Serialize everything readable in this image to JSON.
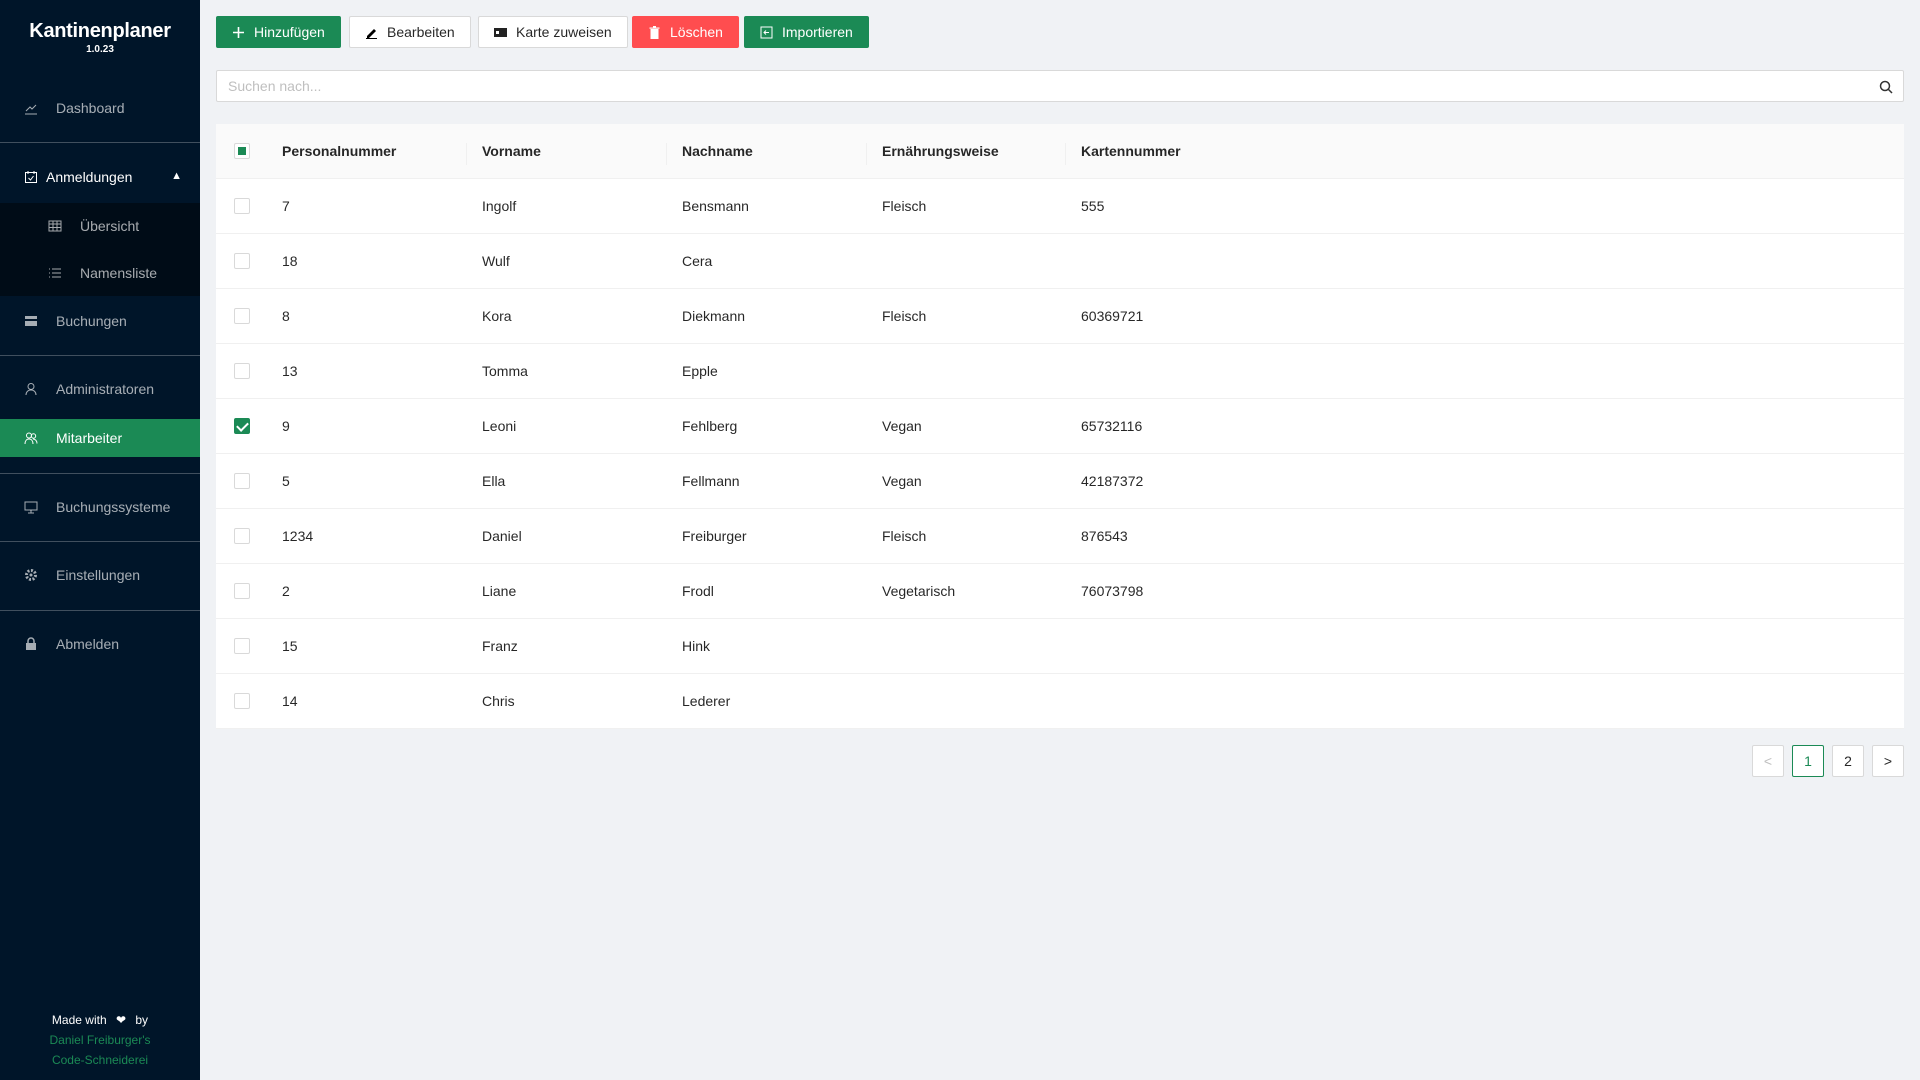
{
  "app": {
    "title": "Kantinenplaner",
    "version": "1.0.23"
  },
  "sidebar": {
    "dashboard": "Dashboard",
    "anmeldungen": "Anmeldungen",
    "uebersicht": "Übersicht",
    "namensliste": "Namensliste",
    "buchungen": "Buchungen",
    "administratoren": "Administratoren",
    "mitarbeiter": "Mitarbeiter",
    "buchungssysteme": "Buchungssysteme",
    "einstellungen": "Einstellungen",
    "abmelden": "Abmelden",
    "active": "Mitarbeiter"
  },
  "footer": {
    "made_with": "Made with",
    "by": "by",
    "credit_line1": "Daniel Freiburger's",
    "credit_line2": "Code-Schneiderei"
  },
  "toolbar": {
    "add": "Hinzufügen",
    "edit": "Bearbeiten",
    "assign_card": "Karte zuweisen",
    "delete": "Löschen",
    "import": "Importieren"
  },
  "search": {
    "placeholder": "Suchen nach...",
    "value": ""
  },
  "table": {
    "columns": [
      "Personalnummer",
      "Vorname",
      "Nachname",
      "Ernährungsweise",
      "Kartennummer"
    ],
    "rows": [
      {
        "selected": false,
        "cells": [
          "7",
          "Ingolf",
          "Bensmann",
          "Fleisch",
          "555"
        ]
      },
      {
        "selected": false,
        "cells": [
          "18",
          "Wulf",
          "Cera",
          "",
          ""
        ]
      },
      {
        "selected": false,
        "cells": [
          "8",
          "Kora",
          "Diekmann",
          "Fleisch",
          "60369721"
        ]
      },
      {
        "selected": false,
        "cells": [
          "13",
          "Tomma",
          "Epple",
          "",
          ""
        ]
      },
      {
        "selected": true,
        "cells": [
          "9",
          "Leoni",
          "Fehlberg",
          "Vegan",
          "65732116"
        ]
      },
      {
        "selected": false,
        "cells": [
          "5",
          "Ella",
          "Fellmann",
          "Vegan",
          "42187372"
        ]
      },
      {
        "selected": false,
        "cells": [
          "1234",
          "Daniel",
          "Freiburger",
          "Fleisch",
          "876543"
        ]
      },
      {
        "selected": false,
        "cells": [
          "2",
          "Liane",
          "Frodl",
          "Vegetarisch",
          "76073798"
        ]
      },
      {
        "selected": false,
        "cells": [
          "15",
          "Franz",
          "Hink",
          "",
          ""
        ]
      },
      {
        "selected": false,
        "cells": [
          "14",
          "Chris",
          "Lederer",
          "",
          ""
        ]
      }
    ]
  },
  "pagination": {
    "pages": [
      "1",
      "2"
    ],
    "current": "1",
    "prev": "<",
    "next": ">"
  },
  "colors": {
    "sidebar": "#001529",
    "accent": "#1b8a55",
    "danger": "#ff4d4f"
  }
}
